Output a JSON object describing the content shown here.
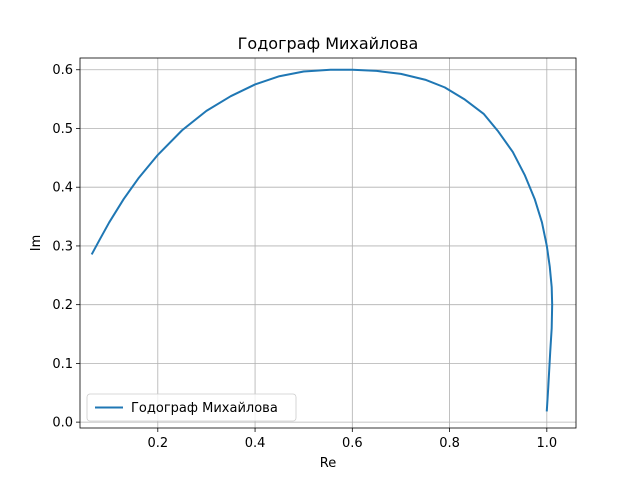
{
  "chart_data": {
    "type": "line",
    "title": "Годограф Михайлова",
    "xlabel": "Re",
    "ylabel": "Im",
    "xlim": [
      0.04,
      1.06
    ],
    "ylim": [
      -0.01,
      0.62
    ],
    "xticks": [
      0.2,
      0.4,
      0.6,
      0.8,
      1.0
    ],
    "xtick_labels": [
      "0.2",
      "0.4",
      "0.6",
      "0.8",
      "1.0"
    ],
    "yticks": [
      0.0,
      0.1,
      0.2,
      0.3,
      0.4,
      0.5,
      0.6
    ],
    "ytick_labels": [
      "0.0",
      "0.1",
      "0.2",
      "0.3",
      "0.4",
      "0.5",
      "0.6"
    ],
    "grid": true,
    "legend_position": "lower-left",
    "series": [
      {
        "name": "Годограф Михайлова",
        "color": "#1f77b4",
        "x": [
          1.0,
          1.003,
          1.007,
          1.01,
          1.011,
          1.01,
          1.006,
          1.0,
          0.99,
          0.975,
          0.955,
          0.93,
          0.9,
          0.87,
          0.83,
          0.79,
          0.75,
          0.7,
          0.65,
          0.6,
          0.555,
          0.5,
          0.45,
          0.4,
          0.35,
          0.3,
          0.25,
          0.2,
          0.16,
          0.13,
          0.1,
          0.08,
          0.065
        ],
        "y": [
          0.02,
          0.06,
          0.12,
          0.16,
          0.2,
          0.23,
          0.265,
          0.3,
          0.34,
          0.38,
          0.42,
          0.46,
          0.495,
          0.525,
          0.55,
          0.57,
          0.583,
          0.593,
          0.598,
          0.6,
          0.6,
          0.597,
          0.589,
          0.575,
          0.555,
          0.53,
          0.497,
          0.455,
          0.415,
          0.38,
          0.34,
          0.31,
          0.287
        ]
      }
    ]
  }
}
